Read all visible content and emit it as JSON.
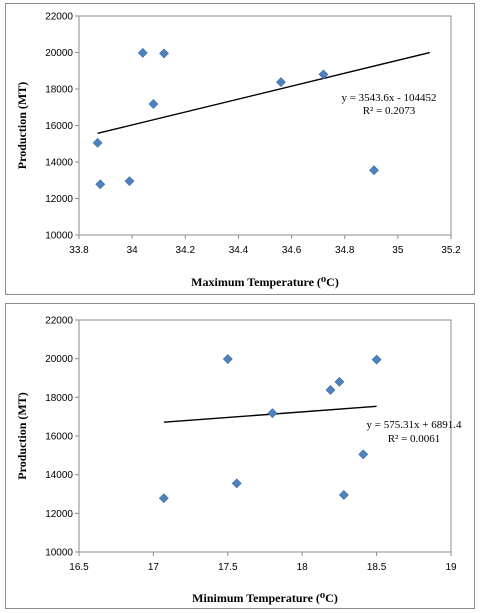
{
  "chart_data": [
    {
      "type": "scatter",
      "xlabel": "Maximum Temperature (⁰C)",
      "ylabel": "Production (MT)",
      "xlim": [
        33.8,
        35.2
      ],
      "ylim": [
        10000,
        22000
      ],
      "xticks": [
        "33.8",
        "34",
        "34.2",
        "34.4",
        "34.6",
        "34.8",
        "35",
        "35.2"
      ],
      "yticks": [
        "10000",
        "12000",
        "14000",
        "16000",
        "18000",
        "20000",
        "22000"
      ],
      "points": [
        {
          "x": 33.87,
          "y": 15050
        },
        {
          "x": 33.88,
          "y": 12780
        },
        {
          "x": 33.99,
          "y": 12950
        },
        {
          "x": 34.04,
          "y": 19980
        },
        {
          "x": 34.08,
          "y": 17180
        },
        {
          "x": 34.12,
          "y": 19950
        },
        {
          "x": 34.56,
          "y": 18380
        },
        {
          "x": 34.72,
          "y": 18800
        },
        {
          "x": 34.91,
          "y": 13550
        }
      ],
      "trendline": {
        "x_start": 33.87,
        "x_end": 35.12,
        "slope": 3543.6,
        "intercept": -104452
      },
      "equation": "y = 3543.6x - 104452",
      "r_squared": "R² = 0.2073",
      "color": "#4f81bd"
    },
    {
      "type": "scatter",
      "xlabel": "Minimum Temperature (⁰C)",
      "ylabel": "Production (MT)",
      "xlim": [
        16.5,
        19
      ],
      "ylim": [
        10000,
        22000
      ],
      "xticks": [
        "16.5",
        "17",
        "17.5",
        "18",
        "18.5",
        "19"
      ],
      "yticks": [
        "10000",
        "12000",
        "14000",
        "16000",
        "18000",
        "20000",
        "22000"
      ],
      "points": [
        {
          "x": 17.07,
          "y": 12780
        },
        {
          "x": 17.5,
          "y": 19980
        },
        {
          "x": 17.56,
          "y": 13550
        },
        {
          "x": 17.8,
          "y": 17180
        },
        {
          "x": 18.19,
          "y": 18380
        },
        {
          "x": 18.25,
          "y": 18800
        },
        {
          "x": 18.28,
          "y": 12950
        },
        {
          "x": 18.41,
          "y": 15050
        },
        {
          "x": 18.5,
          "y": 19950
        }
      ],
      "trendline": {
        "x_start": 17.07,
        "x_end": 18.5,
        "slope": 575.31,
        "intercept": 6891.4
      },
      "equation": "y = 575.31x + 6891.4",
      "r_squared": "R² = 0.0061",
      "color": "#4f81bd"
    }
  ]
}
